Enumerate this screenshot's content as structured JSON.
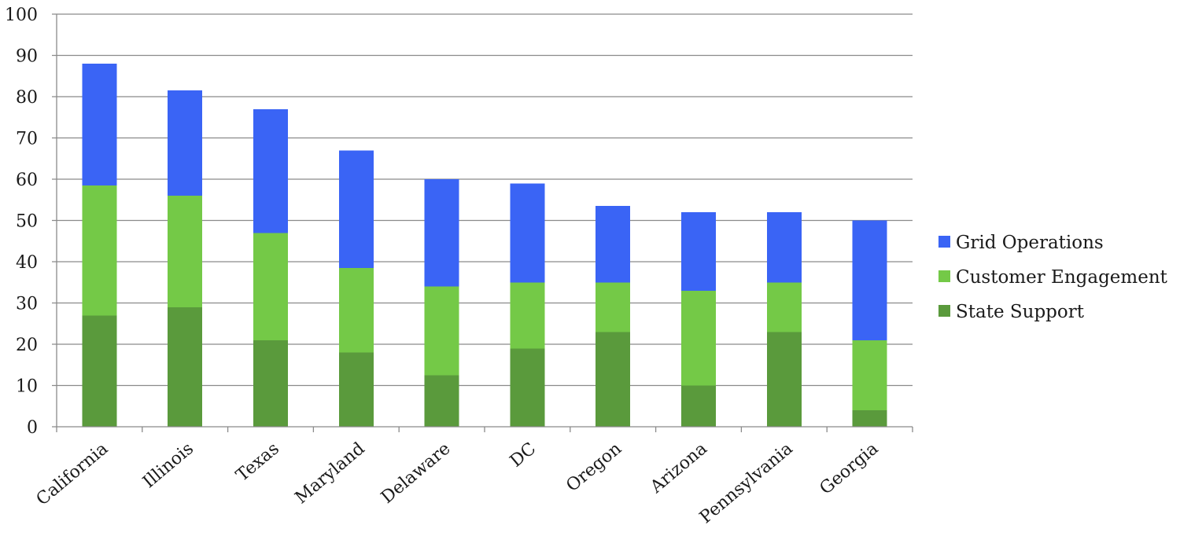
{
  "chart_data": {
    "type": "bar",
    "stacked": true,
    "categories": [
      "California",
      "Illinois",
      "Texas",
      "Maryland",
      "Delaware",
      "DC",
      "Oregon",
      "Arizona",
      "Pennsylvania",
      "Georgia"
    ],
    "series": [
      {
        "name": "State Support",
        "color": "#5a9a3c",
        "values": [
          27,
          29,
          21,
          18,
          12.5,
          19,
          23,
          10,
          23,
          4
        ]
      },
      {
        "name": "Customer Engagement",
        "color": "#74c947",
        "values": [
          31.5,
          27,
          26,
          20.5,
          21.5,
          16,
          12,
          23,
          12,
          17
        ]
      },
      {
        "name": "Grid Operations",
        "color": "#3a64f5",
        "values": [
          29.5,
          25.5,
          30,
          28.5,
          26,
          24,
          18.5,
          19,
          17,
          29
        ]
      }
    ],
    "legend_order": [
      "Grid Operations",
      "Customer Engagement",
      "State Support"
    ],
    "title": "",
    "xlabel": "",
    "ylabel": "",
    "ylim": [
      0,
      100
    ],
    "yticks": [
      "0",
      "10",
      "20",
      "30",
      "40",
      "50",
      "60",
      "70",
      "80",
      "90",
      "100"
    ],
    "grid": true,
    "legend_position": "right"
  }
}
